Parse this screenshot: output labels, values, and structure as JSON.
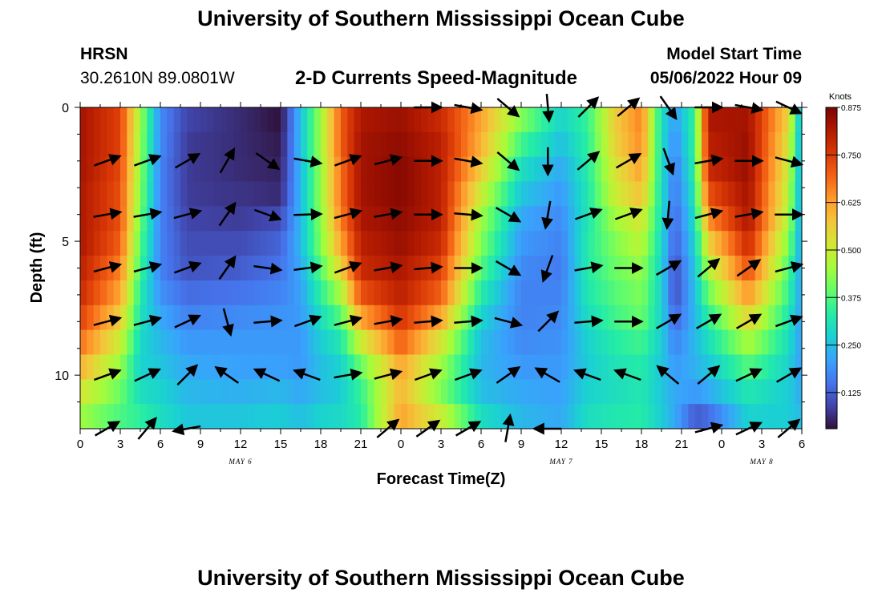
{
  "header": {
    "title": "University of Southern Mississippi Ocean Cube",
    "station": "HRSN",
    "coordinates": "30.2610N  89.0801W",
    "subtitle": "2-D Currents Speed-Magnitude",
    "model_start_label": "Model Start Time",
    "model_start_value": "05/06/2022 Hour 09"
  },
  "footer": {
    "title": "University of Southern Mississippi Ocean Cube"
  },
  "chart_data": {
    "type": "heatmap",
    "title": "2-D Currents Speed-Magnitude",
    "xlabel": "Forecast Time(Z)",
    "ylabel": "Depth (ft)",
    "x_ticks": [
      "0",
      "3",
      "6",
      "9",
      "12",
      "15",
      "18",
      "21",
      "0",
      "3",
      "6",
      "9",
      "12",
      "15",
      "18",
      "21",
      "0",
      "3",
      "6"
    ],
    "x_range_hours": [
      0,
      54
    ],
    "date_labels": [
      {
        "label": "MAY 6",
        "hour": 12
      },
      {
        "label": "MAY 7",
        "hour": 36
      },
      {
        "label": "MAY 8",
        "hour": 51
      }
    ],
    "y_ticks": [
      "0",
      "5",
      "10"
    ],
    "ylim": [
      0,
      12
    ],
    "depths": [
      0,
      1,
      2,
      3,
      4,
      5,
      6,
      7,
      8,
      9,
      10,
      11,
      12
    ],
    "speed_units": "Knots",
    "colorbar": {
      "label": "Knots",
      "ticks": [
        "0.875",
        "0.750",
        "0.625",
        "0.500",
        "0.375",
        "0.250",
        "0.125"
      ],
      "range": [
        0.03,
        0.875
      ],
      "colors": [
        "#30123b",
        "#4145ab",
        "#4675ed",
        "#39a2fc",
        "#1bcfd4",
        "#24eca6",
        "#61fc6c",
        "#a4fc3b",
        "#d1e834",
        "#f3c63a",
        "#fe9b2d",
        "#f36315",
        "#d93806",
        "#b11901",
        "#7a0403"
      ]
    },
    "speed_profiles": [
      {
        "hour": 0,
        "speeds": [
          0.83,
          0.83,
          0.83,
          0.82,
          0.82,
          0.82,
          0.8,
          0.78,
          0.74,
          0.68,
          0.6,
          0.52,
          0.45
        ]
      },
      {
        "hour": 3,
        "speeds": [
          0.74,
          0.74,
          0.73,
          0.72,
          0.72,
          0.7,
          0.66,
          0.62,
          0.56,
          0.5,
          0.44,
          0.4,
          0.37
        ]
      },
      {
        "hour": 4.5,
        "speeds": [
          0.45,
          0.44,
          0.43,
          0.42,
          0.4,
          0.38,
          0.36,
          0.33,
          0.31,
          0.29,
          0.28,
          0.3,
          0.34
        ]
      },
      {
        "hour": 6,
        "speeds": [
          0.18,
          0.18,
          0.17,
          0.17,
          0.17,
          0.17,
          0.17,
          0.19,
          0.22,
          0.24,
          0.26,
          0.28,
          0.3
        ]
      },
      {
        "hour": 8,
        "speeds": [
          0.09,
          0.08,
          0.08,
          0.08,
          0.09,
          0.1,
          0.11,
          0.14,
          0.17,
          0.2,
          0.22,
          0.24,
          0.26
        ]
      },
      {
        "hour": 12,
        "speeds": [
          0.06,
          0.06,
          0.06,
          0.07,
          0.08,
          0.1,
          0.12,
          0.15,
          0.18,
          0.2,
          0.21,
          0.23,
          0.26
        ]
      },
      {
        "hour": 15,
        "speeds": [
          0.03,
          0.04,
          0.05,
          0.06,
          0.1,
          0.13,
          0.15,
          0.17,
          0.19,
          0.2,
          0.21,
          0.24,
          0.27
        ]
      },
      {
        "hour": 16.5,
        "speeds": [
          0.25,
          0.25,
          0.24,
          0.24,
          0.24,
          0.24,
          0.22,
          0.21,
          0.2,
          0.2,
          0.2,
          0.22,
          0.25
        ]
      },
      {
        "hour": 18,
        "speeds": [
          0.45,
          0.45,
          0.44,
          0.44,
          0.43,
          0.42,
          0.38,
          0.34,
          0.3,
          0.27,
          0.25,
          0.25,
          0.28
        ]
      },
      {
        "hour": 19.5,
        "speeds": [
          0.7,
          0.7,
          0.68,
          0.68,
          0.66,
          0.62,
          0.55,
          0.46,
          0.38,
          0.32,
          0.28,
          0.27,
          0.29
        ]
      },
      {
        "hour": 21,
        "speeds": [
          0.82,
          0.83,
          0.83,
          0.83,
          0.82,
          0.8,
          0.78,
          0.72,
          0.62,
          0.5,
          0.4,
          0.35,
          0.33
        ]
      },
      {
        "hour": 24,
        "speeds": [
          0.84,
          0.85,
          0.86,
          0.86,
          0.85,
          0.84,
          0.82,
          0.8,
          0.76,
          0.7,
          0.62,
          0.6,
          0.62
        ]
      },
      {
        "hour": 27,
        "speeds": [
          0.78,
          0.8,
          0.8,
          0.8,
          0.8,
          0.78,
          0.74,
          0.7,
          0.62,
          0.52,
          0.45,
          0.42,
          0.5
        ]
      },
      {
        "hour": 30,
        "speeds": [
          0.62,
          0.6,
          0.56,
          0.5,
          0.45,
          0.42,
          0.38,
          0.33,
          0.28,
          0.25,
          0.24,
          0.25,
          0.3
        ]
      },
      {
        "hour": 33,
        "speeds": [
          0.42,
          0.36,
          0.3,
          0.26,
          0.22,
          0.2,
          0.18,
          0.17,
          0.17,
          0.18,
          0.2,
          0.22,
          0.24
        ]
      },
      {
        "hour": 36,
        "speeds": [
          0.28,
          0.25,
          0.22,
          0.2,
          0.18,
          0.17,
          0.16,
          0.17,
          0.18,
          0.19,
          0.2,
          0.21,
          0.22
        ]
      },
      {
        "hour": 38,
        "speeds": [
          0.35,
          0.34,
          0.33,
          0.32,
          0.32,
          0.33,
          0.33,
          0.32,
          0.3,
          0.28,
          0.27,
          0.28,
          0.3
        ]
      },
      {
        "hour": 40,
        "speeds": [
          0.56,
          0.55,
          0.52,
          0.5,
          0.45,
          0.42,
          0.4,
          0.38,
          0.36,
          0.33,
          0.31,
          0.3,
          0.32
        ]
      },
      {
        "hour": 42,
        "speeds": [
          0.66,
          0.65,
          0.62,
          0.58,
          0.52,
          0.48,
          0.44,
          0.42,
          0.4,
          0.36,
          0.33,
          0.32,
          0.33
        ]
      },
      {
        "hour": 43.5,
        "speeds": [
          0.3,
          0.3,
          0.3,
          0.3,
          0.3,
          0.29,
          0.28,
          0.28,
          0.28,
          0.27,
          0.26,
          0.26,
          0.27
        ]
      },
      {
        "hour": 44.5,
        "speeds": [
          0.2,
          0.18,
          0.16,
          0.15,
          0.13,
          0.12,
          0.1,
          0.1,
          0.13,
          0.17,
          0.2,
          0.22,
          0.22
        ]
      },
      {
        "hour": 46,
        "speeds": [
          0.35,
          0.35,
          0.34,
          0.32,
          0.3,
          0.28,
          0.26,
          0.25,
          0.24,
          0.24,
          0.23,
          0.2,
          0.12
        ]
      },
      {
        "hour": 47,
        "speeds": [
          0.82,
          0.8,
          0.78,
          0.72,
          0.64,
          0.55,
          0.47,
          0.4,
          0.34,
          0.3,
          0.26,
          0.22,
          0.14
        ]
      },
      {
        "hour": 50,
        "speeds": [
          0.83,
          0.84,
          0.84,
          0.83,
          0.82,
          0.78,
          0.72,
          0.64,
          0.55,
          0.46,
          0.38,
          0.32,
          0.28
        ]
      },
      {
        "hour": 53,
        "speeds": [
          0.55,
          0.52,
          0.5,
          0.48,
          0.46,
          0.42,
          0.38,
          0.35,
          0.32,
          0.3,
          0.28,
          0.27,
          0.27
        ]
      },
      {
        "hour": 54,
        "speeds": [
          0.2,
          0.2,
          0.2,
          0.2,
          0.2,
          0.2,
          0.2,
          0.2,
          0.2,
          0.2,
          0.2,
          0.22,
          0.24
        ]
      }
    ],
    "vector_hours": [
      2,
      5,
      8,
      11,
      14,
      17,
      20,
      23,
      26,
      29,
      32,
      35,
      38,
      41,
      44,
      47,
      50,
      53
    ],
    "vector_depths": [
      0,
      2,
      4,
      6,
      8,
      10,
      12
    ],
    "vector_angles_deg": [
      [
        null,
        null,
        null,
        null,
        null,
        null,
        null,
        null,
        0,
        10,
        40,
        85,
        -45,
        -40,
        55,
        0,
        10,
        25
      ],
      [
        -20,
        -20,
        -30,
        -60,
        35,
        10,
        -20,
        -15,
        0,
        10,
        40,
        90,
        -40,
        -30,
        70,
        -10,
        0,
        15
      ],
      [
        -10,
        -10,
        -15,
        -55,
        20,
        -2,
        -15,
        -10,
        0,
        5,
        30,
        100,
        -20,
        -20,
        95,
        -15,
        -10,
        0
      ],
      [
        -15,
        -15,
        -20,
        -55,
        8,
        -8,
        -20,
        -10,
        -5,
        0,
        30,
        110,
        -10,
        0,
        -30,
        -40,
        -35,
        -15
      ],
      [
        -15,
        -15,
        -25,
        75,
        -5,
        -20,
        -15,
        -10,
        -5,
        -5,
        15,
        -45,
        -5,
        0,
        -30,
        -30,
        -30,
        -20
      ],
      [
        -20,
        -25,
        -45,
        -145,
        -155,
        -160,
        -10,
        -15,
        -20,
        -20,
        -35,
        -150,
        -160,
        -160,
        -140,
        -40,
        -25,
        -30
      ],
      [
        -30,
        -50,
        170,
        null,
        null,
        null,
        null,
        -40,
        -35,
        -30,
        -80,
        180,
        null,
        null,
        null,
        -15,
        -25,
        -40
      ]
    ]
  }
}
